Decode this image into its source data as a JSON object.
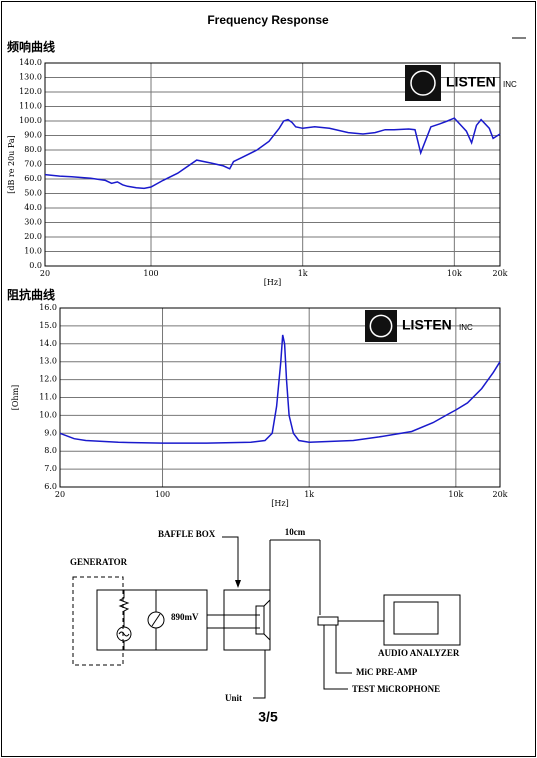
{
  "header": {
    "title": "Frequency    Response"
  },
  "chart_data": [
    {
      "type": "line",
      "title": "频响曲线",
      "x_label": "[Hz]",
      "y_label": "[dB re 20u Pa]",
      "logo": "LISTEN",
      "logo_suffix": "INC",
      "xscale": "log",
      "grid": true,
      "xlim": [
        20,
        20000
      ],
      "xticks": [
        20,
        100,
        {
          "value": 1000,
          "label": "1k"
        },
        {
          "value": 10000,
          "label": "10k"
        },
        {
          "value": 20000,
          "label": "20k"
        }
      ],
      "ylim": [
        0,
        140
      ],
      "yticks": [
        {
          "value": 0,
          "label": "0.0"
        },
        {
          "value": 10,
          "label": "10.0"
        },
        {
          "value": 20,
          "label": "20.0"
        },
        {
          "value": 30,
          "label": "30.0"
        },
        {
          "value": 40,
          "label": "40.0"
        },
        {
          "value": 50,
          "label": "50.0"
        },
        {
          "value": 60,
          "label": "60.0"
        },
        {
          "value": 70,
          "label": "70.0"
        },
        {
          "value": 80,
          "label": "80.0"
        },
        {
          "value": 90,
          "label": "90.0"
        },
        {
          "value": 100,
          "label": "100.0"
        },
        {
          "value": 110,
          "label": "110.0"
        },
        {
          "value": 120,
          "label": "120.0"
        },
        {
          "value": 130,
          "label": "130.0"
        },
        {
          "value": 140,
          "label": "140.0"
        }
      ],
      "x": [
        20,
        25,
        30,
        40,
        50,
        55,
        60,
        65,
        70,
        80,
        90,
        100,
        120,
        150,
        200,
        250,
        300,
        330,
        350,
        400,
        500,
        600,
        700,
        750,
        800,
        850,
        900,
        1000,
        1200,
        1500,
        2000,
        2500,
        3000,
        3500,
        4000,
        5000,
        5500,
        6000,
        7000,
        8000,
        9000,
        10000,
        12000,
        13000,
        14000,
        15000,
        17000,
        18000,
        20000
      ],
      "series": [
        {
          "color": "#1a1acc",
          "values": [
            63,
            62,
            61.5,
            60.5,
            59,
            57,
            58,
            56,
            55,
            54,
            53.5,
            54.5,
            59,
            64,
            73,
            71,
            69,
            67,
            72,
            75,
            80,
            86,
            95,
            100,
            101,
            99,
            96,
            95,
            96,
            95,
            92,
            91,
            92,
            94,
            94,
            94.5,
            94,
            78,
            96,
            98,
            100,
            102,
            93,
            85,
            97,
            101,
            95,
            88,
            91
          ]
        }
      ]
    },
    {
      "type": "line",
      "title": "阻抗曲线",
      "x_label": "[Hz]",
      "y_label": "[Ohm]",
      "logo": "LISTEN",
      "logo_suffix": "INC",
      "xscale": "log",
      "grid": true,
      "xlim": [
        20,
        20000
      ],
      "xticks": [
        20,
        100,
        {
          "value": 1000,
          "label": "1k"
        },
        {
          "value": 10000,
          "label": "10k"
        },
        {
          "value": 20000,
          "label": "20k"
        }
      ],
      "ylim": [
        6,
        16
      ],
      "yticks": [
        {
          "value": 6,
          "label": "6.0"
        },
        {
          "value": 7,
          "label": "7.0"
        },
        {
          "value": 8,
          "label": "8.0"
        },
        {
          "value": 9,
          "label": "9.0"
        },
        {
          "value": 10,
          "label": "10.0"
        },
        {
          "value": 11,
          "label": "11.0"
        },
        {
          "value": 12,
          "label": "12.0"
        },
        {
          "value": 13,
          "label": "13.0"
        },
        {
          "value": 14,
          "label": "14.0"
        },
        {
          "value": 15,
          "label": "15.0"
        },
        {
          "value": 16,
          "label": "16.0"
        }
      ],
      "x": [
        20,
        25,
        30,
        50,
        100,
        200,
        400,
        500,
        560,
        600,
        640,
        660,
        680,
        700,
        730,
        780,
        850,
        1000,
        2000,
        3000,
        5000,
        7000,
        9000,
        10000,
        12000,
        15000,
        18000,
        20000
      ],
      "series": [
        {
          "color": "#1a1acc",
          "values": [
            9.0,
            8.7,
            8.6,
            8.5,
            8.45,
            8.45,
            8.5,
            8.6,
            9.0,
            10.5,
            13,
            14.5,
            14,
            12,
            10,
            9,
            8.6,
            8.5,
            8.6,
            8.8,
            9.1,
            9.6,
            10.1,
            10.3,
            10.7,
            11.5,
            12.4,
            13.0
          ]
        }
      ]
    }
  ],
  "diagram": {
    "generator": "GENERATOR",
    "voltage": "890mV",
    "baffle_box": "BAFFLE BOX",
    "distance": "10cm",
    "unit": "Unit",
    "analyzer": "AUDIO ANALYZER",
    "preamp": "MiC PRE-AMP",
    "microphone": "TEST MiCROPHONE"
  },
  "footer": {
    "page": "3/5"
  }
}
